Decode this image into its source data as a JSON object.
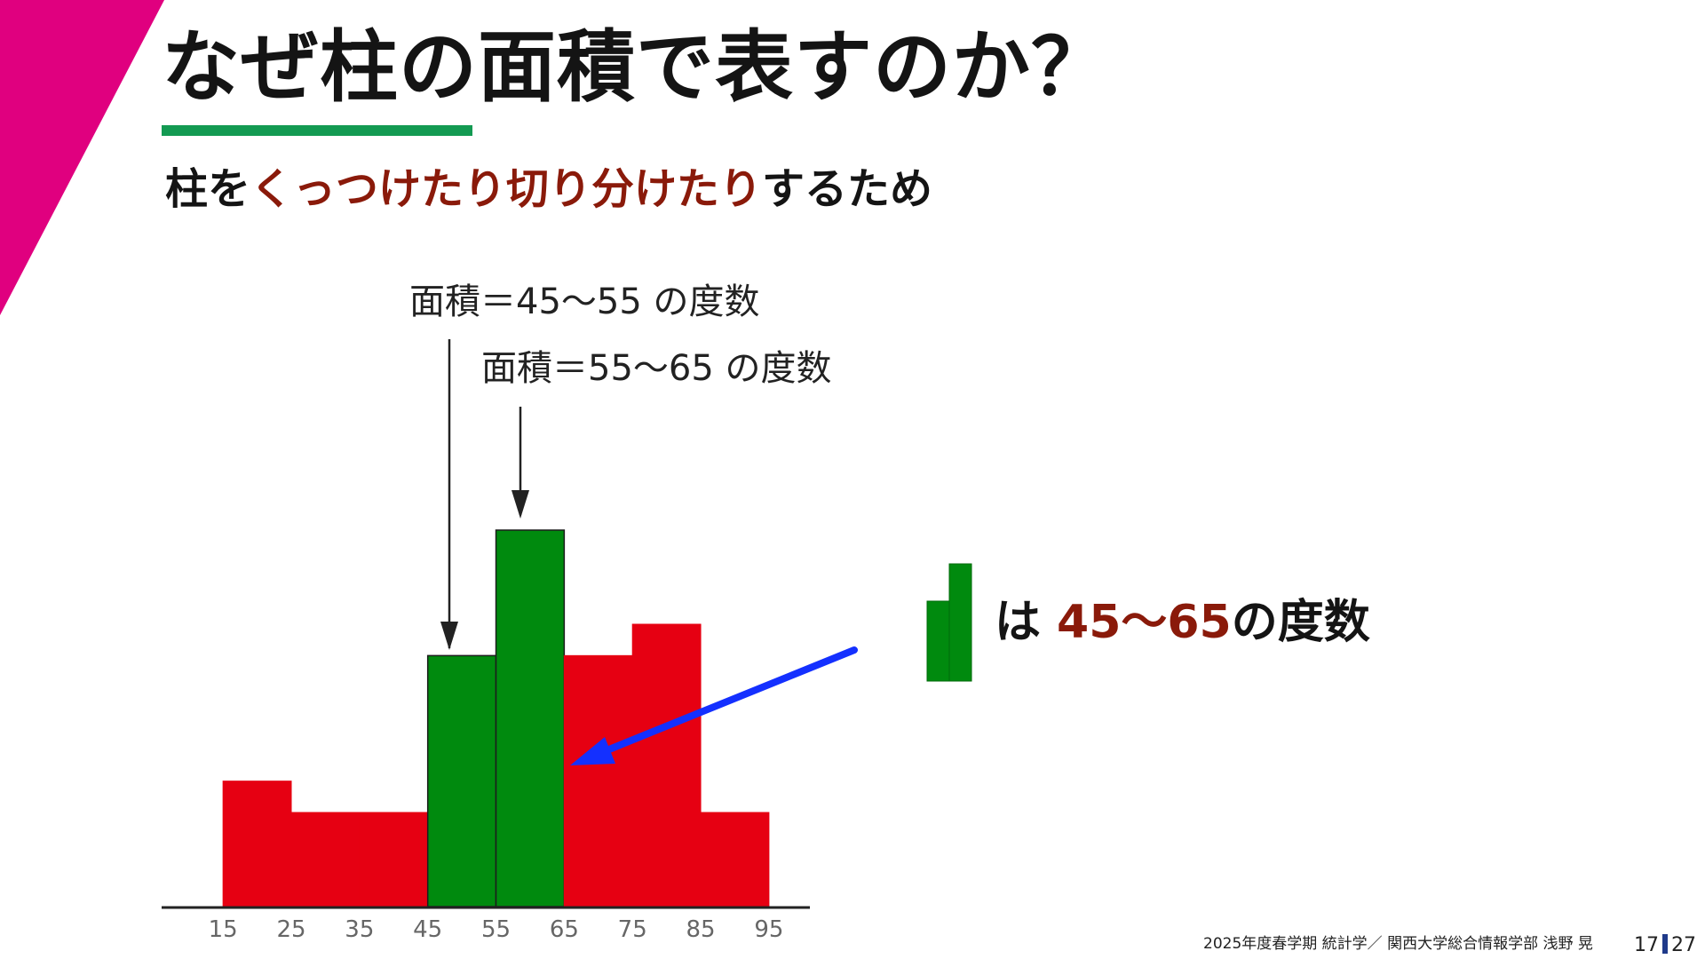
{
  "title": "なぜ柱の面積で表すのか？",
  "subtitle": {
    "prefix": "柱を",
    "highlight": "くっつけたり切り分けたり",
    "suffix": "するため"
  },
  "annotations": [
    "面積＝45～55 の度数",
    "面積＝55～65 の度数"
  ],
  "legend": {
    "prefix": "は",
    "range": "45～65",
    "suffix": "の度数"
  },
  "footer": "2025年度春学期 統計学／ 関西大学総合情報学部 浅野 晃",
  "page": {
    "current": "17",
    "total": "27"
  },
  "colors": {
    "accent": "#e0007f",
    "underline": "#139a52",
    "highlight_text": "#8a1a0a",
    "bar_red": "#e60012",
    "bar_green": "#008a0e",
    "pointer_arrow": "#1430ff"
  },
  "chart_data": {
    "type": "bar",
    "categories": [
      "15",
      "25",
      "35",
      "45",
      "55",
      "65",
      "75",
      "85",
      "95"
    ],
    "bins": [
      {
        "from": 15,
        "to": 25,
        "value": 4
      },
      {
        "from": 25,
        "to": 35,
        "value": 3
      },
      {
        "from": 35,
        "to": 45,
        "value": 3
      },
      {
        "from": 45,
        "to": 55,
        "value": 8,
        "highlight": true
      },
      {
        "from": 55,
        "to": 65,
        "value": 12,
        "highlight": true
      },
      {
        "from": 65,
        "to": 75,
        "value": 8
      },
      {
        "from": 75,
        "to": 85,
        "value": 9
      },
      {
        "from": 85,
        "to": 95,
        "value": 3
      }
    ],
    "xlim": [
      6,
      101
    ],
    "ylim": [
      0,
      12
    ],
    "title": "",
    "xlabel": "",
    "ylabel": "",
    "grid": false,
    "legend": "none"
  }
}
